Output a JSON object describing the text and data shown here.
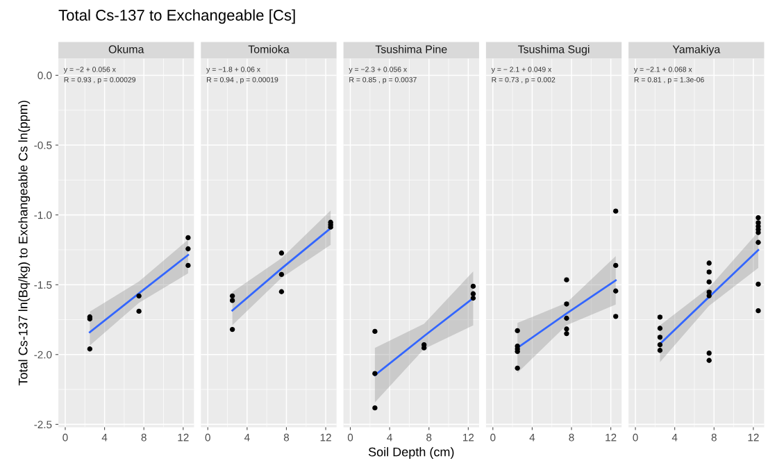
{
  "chart_data": [
    {
      "type": "scatter",
      "title": "Total Cs-137 to Exchangeable [Cs]",
      "subtitle": "Okuma",
      "ylabel": "Total Cs-137 ln(Bq/kg) to Exchangeable Cs ln(ppm)",
      "xlim": [
        -0.7,
        13.1
      ],
      "ylim": [
        -2.52,
        0.12
      ],
      "xticks": [
        0,
        4,
        8,
        12
      ],
      "yticks": [
        {
          "value": 0,
          "label": "0.0"
        },
        -0.5,
        {
          "value": -1,
          "label": "-1.0"
        },
        -1.5,
        {
          "value": -2,
          "label": "-2.0"
        },
        -2.5
      ],
      "grid": true,
      "marker": "circle",
      "annotations": [
        "y = −2 + 0.056 x",
        "R = 0.93 , p = 0.00029"
      ],
      "series": [
        {
          "color": "#000000",
          "x": [
            2.5,
            2.5,
            2.5,
            7.5,
            7.5,
            12.5,
            12.5,
            12.5
          ],
          "values": [
            -1.73,
            -1.745,
            -1.96,
            -1.58,
            -1.69,
            -1.163,
            -1.243,
            -1.362
          ]
        },
        {
          "type": "line",
          "marker": "none",
          "color": "#3366ff",
          "x": [
            2.5,
            7.5,
            12.5
          ],
          "values": [
            -1.84,
            -1.562,
            -1.287
          ],
          "lower": [
            -1.935,
            -1.63,
            -1.418
          ],
          "upper": [
            -1.693,
            -1.477,
            -1.177
          ]
        }
      ]
    },
    {
      "type": "scatter",
      "subtitle": "Tomioka",
      "tick_labels": "x",
      "xlim": [
        -0.7,
        13.1
      ],
      "ylim": [
        -2.52,
        0.12
      ],
      "xticks": [
        0,
        4,
        8,
        12
      ],
      "yticks": [
        0,
        -0.5,
        -1,
        -1.5,
        -2,
        -2.5
      ],
      "grid": true,
      "marker": "circle",
      "annotations": [
        "y = −1.8 + 0.06 x",
        "R = 0.94 , p = 0.00019"
      ],
      "series": [
        {
          "color": "#000000",
          "x": [
            2.5,
            2.5,
            2.5,
            7.5,
            7.5,
            7.5,
            12.5,
            12.5,
            12.5
          ],
          "values": [
            -1.58,
            -1.613,
            -1.82,
            -1.273,
            -1.426,
            -1.55,
            -1.053,
            -1.07,
            -1.087
          ]
        },
        {
          "type": "line",
          "marker": "none",
          "color": "#3366ff",
          "x": [
            2.5,
            7.5,
            12.5
          ],
          "values": [
            -1.684,
            -1.384,
            -1.095
          ],
          "lower": [
            -1.79,
            -1.45,
            -1.214
          ],
          "upper": [
            -1.553,
            -1.31,
            -0.968
          ]
        }
      ]
    },
    {
      "type": "scatter",
      "subtitle": "Tsushima Pine",
      "xlabel": "Soil Depth (cm)",
      "tick_labels": "x",
      "xlim": [
        -0.7,
        13.1
      ],
      "ylim": [
        -2.52,
        0.12
      ],
      "xticks": [
        0,
        4,
        8,
        12
      ],
      "yticks": [
        0,
        -0.5,
        -1,
        -1.5,
        -2,
        -2.5
      ],
      "grid": true,
      "marker": "circle",
      "annotations": [
        "y = −2.3 + 0.056 x",
        "R = 0.85 , p = 0.0037"
      ],
      "series": [
        {
          "color": "#000000",
          "x": [
            2.5,
            2.5,
            2.5,
            7.5,
            7.5,
            12.5,
            12.5,
            12.5
          ],
          "values": [
            -1.834,
            -2.136,
            -2.382,
            -1.93,
            -1.952,
            -1.511,
            -1.565,
            -1.596
          ]
        },
        {
          "type": "line",
          "marker": "none",
          "color": "#3366ff",
          "x": [
            2.5,
            7.5,
            12.5
          ],
          "values": [
            -2.148,
            -1.868,
            -1.596
          ],
          "lower": [
            -2.343,
            -1.96,
            -1.791
          ],
          "upper": [
            -1.952,
            -1.78,
            -1.404
          ]
        }
      ]
    },
    {
      "type": "scatter",
      "subtitle": "Tsushima Sugi",
      "tick_labels": "x",
      "xlim": [
        -0.7,
        13.1
      ],
      "ylim": [
        -2.52,
        0.12
      ],
      "xticks": [
        0,
        4,
        8,
        12
      ],
      "yticks": [
        0,
        -0.5,
        -1,
        -1.5,
        -2,
        -2.5
      ],
      "grid": true,
      "marker": "circle",
      "annotations": [
        "y = − 2.1 + 0.049 x",
        "R = 0.73 , p = 0.002"
      ],
      "series": [
        {
          "color": "#000000",
          "x": [
            2.5,
            2.5,
            2.5,
            2.5,
            2.5,
            7.5,
            7.5,
            7.5,
            7.5,
            7.5,
            12.5,
            12.5,
            12.5,
            12.5
          ],
          "values": [
            -1.829,
            -1.94,
            -1.96,
            -1.978,
            -2.097,
            -1.465,
            -1.638,
            -1.74,
            -1.817,
            -1.85,
            -0.973,
            -1.362,
            -1.545,
            -1.727
          ]
        },
        {
          "type": "line",
          "marker": "none",
          "color": "#3366ff",
          "x": [
            2.5,
            7.5,
            12.5
          ],
          "values": [
            -1.952,
            -1.706,
            -1.469
          ],
          "lower": [
            -2.131,
            -1.79,
            -1.642
          ],
          "upper": [
            -1.774,
            -1.63,
            -1.295
          ]
        }
      ]
    },
    {
      "type": "scatter",
      "subtitle": "Yamakiya",
      "tick_labels": "x",
      "xlim": [
        -0.7,
        13.1
      ],
      "ylim": [
        -2.52,
        0.12
      ],
      "xticks": [
        0,
        4,
        8,
        12
      ],
      "yticks": [
        0,
        -0.5,
        -1,
        -1.5,
        -2,
        -2.5
      ],
      "grid": true,
      "marker": "circle",
      "annotations": [
        "y = −2.1 + 0.068 x",
        "R = 0.81 , p = 1.3e-06"
      ],
      "series": [
        {
          "color": "#000000",
          "x": [
            2.5,
            2.5,
            2.5,
            2.5,
            2.5,
            7.5,
            7.5,
            7.5,
            7.5,
            7.5,
            7.5,
            7.5,
            12.5,
            12.5,
            12.5,
            12.5,
            12.5,
            12.5,
            12.5,
            12.5
          ],
          "values": [
            -1.732,
            -1.812,
            -1.876,
            -1.93,
            -1.97,
            -1.345,
            -1.409,
            -1.48,
            -1.553,
            -1.579,
            -1.99,
            -2.042,
            -1.02,
            -1.056,
            -1.082,
            -1.104,
            -1.126,
            -1.197,
            -1.496,
            -1.686
          ]
        },
        {
          "type": "line",
          "marker": "none",
          "color": "#3366ff",
          "x": [
            2.5,
            7.5,
            12.5
          ],
          "values": [
            -1.924,
            -1.587,
            -1.251
          ],
          "lower": [
            -2.054,
            -1.65,
            -1.38
          ],
          "upper": [
            -1.791,
            -1.52,
            -1.121
          ]
        }
      ]
    }
  ]
}
